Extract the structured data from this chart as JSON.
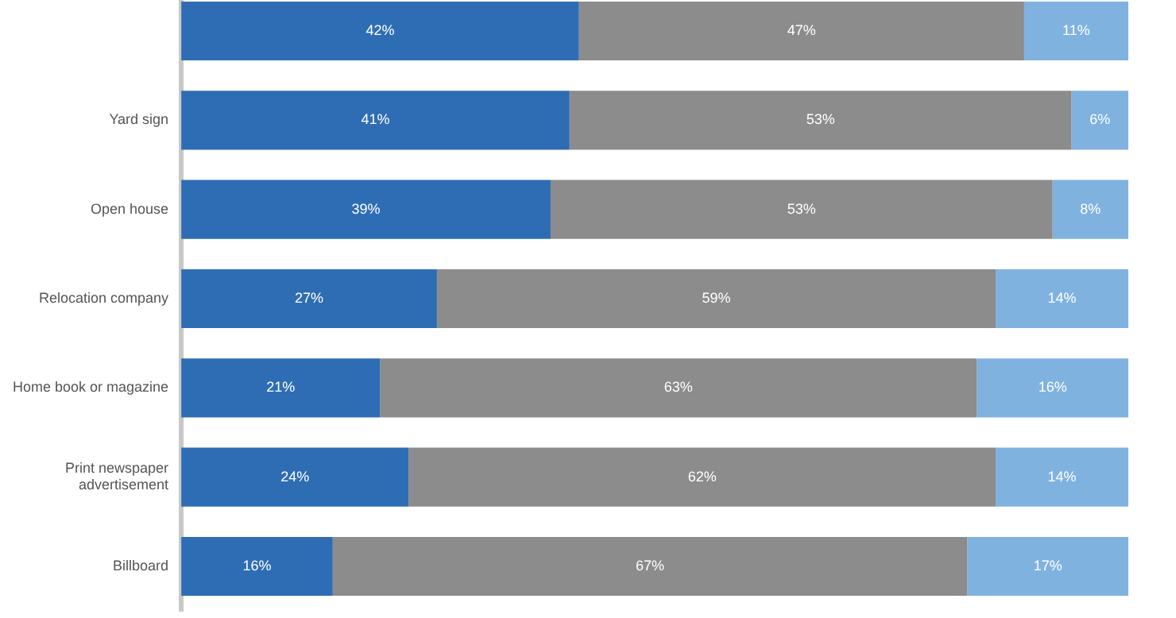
{
  "chart_data": {
    "type": "bar",
    "orientation": "horizontal",
    "stacked": true,
    "categories": [
      null,
      "Yard sign",
      "Open house",
      "Relocation company",
      "Home book or magazine",
      "Print newspaper advertisement",
      "Billboard"
    ],
    "series": [
      {
        "color": "#2e6db4",
        "values": [
          42,
          41,
          39,
          27,
          21,
          24,
          16
        ],
        "value_labels": [
          "42%",
          "41%",
          "39%",
          "27%",
          "21%",
          "24%",
          "16%"
        ]
      },
      {
        "color": "#8c8c8c",
        "values": [
          47,
          53,
          53,
          59,
          63,
          62,
          67
        ],
        "value_labels": [
          "47%",
          "53%",
          "53%",
          "59%",
          "63%",
          "62%",
          "67%"
        ]
      },
      {
        "color": "#80b2e0",
        "values": [
          11,
          6,
          8,
          14,
          16,
          14,
          17
        ],
        "value_labels": [
          "11%",
          "6%",
          "8%",
          "14%",
          "16%",
          "14%",
          "17%"
        ]
      }
    ]
  }
}
